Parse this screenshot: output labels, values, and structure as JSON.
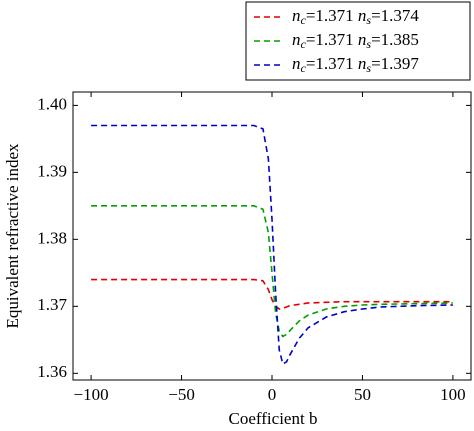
{
  "chart_data": {
    "type": "line",
    "xlabel": "Coefficient b",
    "ylabel": "Equivalent refractive index",
    "x": [
      -100,
      -80,
      -60,
      -40,
      -20,
      -10,
      -5,
      -2,
      0,
      2,
      4,
      6,
      8,
      10,
      15,
      20,
      30,
      40,
      50,
      60,
      80,
      100
    ],
    "series": [
      {
        "name": "nc=1.371 ns=1.374",
        "color": "#e00000",
        "values": [
          1.374,
          1.374,
          1.374,
          1.374,
          1.374,
          1.374,
          1.3738,
          1.3725,
          1.371,
          1.37,
          1.3696,
          1.3697,
          1.3699,
          1.3701,
          1.3703,
          1.3705,
          1.3706,
          1.3707,
          1.3707,
          1.3707,
          1.3707,
          1.3707
        ]
      },
      {
        "name": "nc=1.371 ns=1.385",
        "color": "#00a000",
        "values": [
          1.385,
          1.385,
          1.385,
          1.385,
          1.385,
          1.385,
          1.3845,
          1.381,
          1.375,
          1.369,
          1.3663,
          1.3655,
          1.3658,
          1.3664,
          1.3678,
          1.3687,
          1.3696,
          1.37,
          1.3702,
          1.3703,
          1.3704,
          1.3705
        ]
      },
      {
        "name": "nc=1.371 ns=1.397",
        "color": "#0000c8",
        "values": [
          1.397,
          1.397,
          1.397,
          1.397,
          1.397,
          1.397,
          1.3965,
          1.392,
          1.383,
          1.372,
          1.3635,
          1.3614,
          1.3617,
          1.3628,
          1.3652,
          1.3668,
          1.3684,
          1.3692,
          1.3696,
          1.3699,
          1.3701,
          1.3702
        ]
      }
    ],
    "xlim": [
      -110,
      110
    ],
    "ylim": [
      1.359,
      1.402
    ],
    "xticks": [
      {
        "value": -100,
        "label": "−100"
      },
      {
        "value": -50,
        "label": "−50"
      },
      0,
      50,
      100
    ],
    "yticks": [
      1.36,
      1.37,
      1.38,
      1.39,
      {
        "value": 1.4,
        "label": "1.40"
      }
    ],
    "legend": "upper-right",
    "grid": false
  }
}
